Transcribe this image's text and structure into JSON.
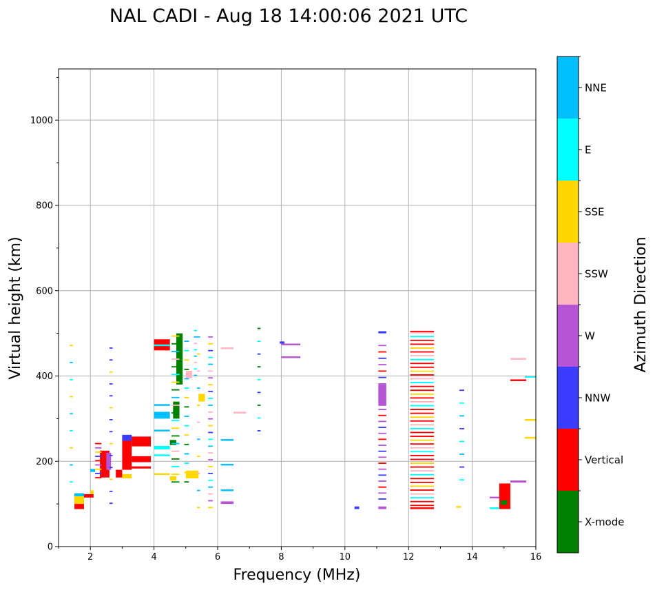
{
  "chart_data": {
    "type": "scatter",
    "title": "NAL CADI - Aug 18 14:00:06 2021 UTC",
    "xlabel": "Frequency (MHz)",
    "ylabel": "Virtual height (km)",
    "xlim": [
      1,
      16
    ],
    "ylim": [
      0,
      1120
    ],
    "xticks": [
      "2",
      "4",
      "6",
      "8",
      "10",
      "12",
      "14",
      "16"
    ],
    "yticks": [
      "0",
      "200",
      "400",
      "600",
      "800",
      "1000"
    ],
    "grid": true,
    "colorbar": {
      "label": "Azimuth Direction",
      "categories": [
        {
          "name": "X-mode",
          "color": "#008000"
        },
        {
          "name": "Vertical",
          "color": "#ff0000"
        },
        {
          "name": "NNW",
          "color": "#3c3cff"
        },
        {
          "name": "W",
          "color": "#b555d5"
        },
        {
          "name": "SSW",
          "color": "#ffb6c1"
        },
        {
          "name": "SSE",
          "color": "#ffd700"
        },
        {
          "name": "E",
          "color": "#00ffff"
        },
        {
          "name": "NNE",
          "color": "#00bfff"
        }
      ]
    },
    "segments": [
      {
        "f0": 1.5,
        "f1": 1.8,
        "h0": 88,
        "h1": 125,
        "az": "Vertical"
      },
      {
        "f0": 1.5,
        "f1": 1.8,
        "h0": 100,
        "h1": 125,
        "az": "SSE"
      },
      {
        "f0": 1.5,
        "f1": 1.8,
        "h0": 118,
        "h1": 125,
        "az": "NNE"
      },
      {
        "f0": 1.8,
        "f1": 2.1,
        "h0": 115,
        "h1": 123,
        "az": "Vertical"
      },
      {
        "f0": 2.0,
        "f1": 2.1,
        "h0": 123,
        "h1": 132,
        "az": "SSE"
      },
      {
        "f0": 2.0,
        "f1": 2.15,
        "h0": 175,
        "h1": 182,
        "az": "NNE"
      },
      {
        "f0": 2.3,
        "f1": 2.6,
        "h0": 162,
        "h1": 225,
        "az": "Vertical"
      },
      {
        "f0": 2.5,
        "f1": 2.65,
        "h0": 180,
        "h1": 220,
        "az": "W"
      },
      {
        "f0": 2.8,
        "f1": 3.0,
        "h0": 162,
        "h1": 180,
        "az": "Vertical"
      },
      {
        "f0": 3.0,
        "f1": 3.3,
        "h0": 160,
        "h1": 170,
        "az": "SSE"
      },
      {
        "f0": 3.0,
        "f1": 3.3,
        "h0": 180,
        "h1": 260,
        "az": "Vertical"
      },
      {
        "f0": 3.0,
        "f1": 3.3,
        "h0": 248,
        "h1": 262,
        "az": "NNW"
      },
      {
        "f0": 3.3,
        "f1": 3.9,
        "h0": 198,
        "h1": 212,
        "az": "Vertical"
      },
      {
        "f0": 3.3,
        "f1": 3.9,
        "h0": 235,
        "h1": 258,
        "az": "Vertical"
      },
      {
        "f0": 3.3,
        "f1": 3.9,
        "h0": 183,
        "h1": 188,
        "az": "Vertical"
      },
      {
        "f0": 4.0,
        "f1": 4.5,
        "h0": 228,
        "h1": 236,
        "az": "E"
      },
      {
        "f0": 4.0,
        "f1": 4.5,
        "h0": 212,
        "h1": 216,
        "az": "E"
      },
      {
        "f0": 4.0,
        "f1": 4.5,
        "h0": 168,
        "h1": 172,
        "az": "SSE"
      },
      {
        "f0": 4.0,
        "f1": 4.5,
        "h0": 300,
        "h1": 316,
        "az": "NNE"
      },
      {
        "f0": 4.0,
        "f1": 4.5,
        "h0": 270,
        "h1": 274,
        "az": "NNE"
      },
      {
        "f0": 4.0,
        "f1": 4.5,
        "h0": 330,
        "h1": 334,
        "az": "NNE"
      },
      {
        "f0": 4.0,
        "f1": 4.5,
        "h0": 460,
        "h1": 486,
        "az": "Vertical"
      },
      {
        "f0": 4.0,
        "f1": 4.5,
        "h0": 470,
        "h1": 474,
        "az": "E"
      },
      {
        "f0": 4.5,
        "f1": 4.7,
        "h0": 238,
        "h1": 250,
        "az": "X-mode"
      },
      {
        "f0": 4.6,
        "f1": 4.8,
        "h0": 300,
        "h1": 340,
        "az": "X-mode"
      },
      {
        "f0": 4.7,
        "f1": 4.9,
        "h0": 380,
        "h1": 500,
        "az": "X-mode"
      },
      {
        "f0": 4.5,
        "f1": 4.7,
        "h0": 155,
        "h1": 165,
        "az": "SSE"
      },
      {
        "f0": 5.0,
        "f1": 5.4,
        "h0": 160,
        "h1": 178,
        "az": "SSE"
      },
      {
        "f0": 5.4,
        "f1": 5.6,
        "h0": 340,
        "h1": 358,
        "az": "SSE"
      },
      {
        "f0": 5.0,
        "f1": 5.2,
        "h0": 395,
        "h1": 412,
        "az": "SSW"
      },
      {
        "f0": 6.1,
        "f1": 6.5,
        "h0": 100,
        "h1": 106,
        "az": "W"
      },
      {
        "f0": 6.1,
        "f1": 6.5,
        "h0": 130,
        "h1": 134,
        "az": "NNE"
      },
      {
        "f0": 6.1,
        "f1": 6.5,
        "h0": 190,
        "h1": 194,
        "az": "NNE"
      },
      {
        "f0": 6.1,
        "f1": 6.5,
        "h0": 248,
        "h1": 252,
        "az": "NNE"
      },
      {
        "f0": 6.1,
        "f1": 6.5,
        "h0": 463,
        "h1": 467,
        "az": "SSW"
      },
      {
        "f0": 6.5,
        "f1": 6.9,
        "h0": 312,
        "h1": 316,
        "az": "SSW"
      },
      {
        "f0": 8.0,
        "f1": 8.6,
        "h0": 442,
        "h1": 446,
        "az": "W"
      },
      {
        "f0": 8.0,
        "f1": 8.6,
        "h0": 472,
        "h1": 476,
        "az": "W"
      },
      {
        "f0": 7.95,
        "f1": 8.1,
        "h0": 476,
        "h1": 481,
        "az": "NNW"
      },
      {
        "f0": 10.3,
        "f1": 10.45,
        "h0": 88,
        "h1": 94,
        "az": "NNW"
      },
      {
        "f0": 11.05,
        "f1": 11.3,
        "h0": 88,
        "h1": 94,
        "az": "W"
      },
      {
        "f0": 11.05,
        "f1": 11.3,
        "h0": 330,
        "h1": 380,
        "az": "W"
      },
      {
        "f0": 11.05,
        "f1": 11.3,
        "h0": 500,
        "h1": 505,
        "az": "NNW"
      },
      {
        "f0": 12.05,
        "f1": 12.8,
        "h0": 88,
        "h1": 92,
        "az": "Vertical"
      },
      {
        "f0": 12.05,
        "f1": 12.8,
        "h0": 502,
        "h1": 506,
        "az": "Vertical"
      },
      {
        "f0": 13.5,
        "f1": 13.65,
        "h0": 91,
        "h1": 95,
        "az": "SSE"
      },
      {
        "f0": 14.55,
        "f1": 14.85,
        "h0": 113,
        "h1": 117,
        "az": "W"
      },
      {
        "f0": 14.55,
        "f1": 14.85,
        "h0": 88,
        "h1": 92,
        "az": "E"
      },
      {
        "f0": 14.85,
        "f1": 15.2,
        "h0": 88,
        "h1": 148,
        "az": "Vertical"
      },
      {
        "f0": 14.9,
        "f1": 15.1,
        "h0": 98,
        "h1": 108,
        "az": "X-mode"
      },
      {
        "f0": 15.2,
        "f1": 15.7,
        "h0": 150,
        "h1": 155,
        "az": "W"
      },
      {
        "f0": 15.2,
        "f1": 15.7,
        "h0": 388,
        "h1": 392,
        "az": "Vertical"
      },
      {
        "f0": 15.2,
        "f1": 15.7,
        "h0": 438,
        "h1": 442,
        "az": "SSW"
      },
      {
        "f0": 15.65,
        "f1": 16.0,
        "h0": 253,
        "h1": 257,
        "az": "SSE"
      },
      {
        "f0": 15.65,
        "f1": 16.0,
        "h0": 295,
        "h1": 299,
        "az": "SSE"
      },
      {
        "f0": 15.65,
        "f1": 16.0,
        "h0": 396,
        "h1": 399,
        "az": "E"
      }
    ],
    "ladders": [
      {
        "f0": 12.05,
        "f1": 12.8,
        "h0": 95,
        "h1": 500,
        "step": 9,
        "cycle": [
          "Vertical",
          "Vertical",
          "E",
          "SSW",
          "Vertical",
          "SSE"
        ]
      },
      {
        "f0": 11.05,
        "f1": 11.3,
        "h0": 110,
        "h1": 330,
        "step": 14,
        "cycle": [
          "NNW",
          "W",
          "Vertical",
          "W"
        ]
      },
      {
        "f0": 11.05,
        "f1": 11.3,
        "h0": 380,
        "h1": 470,
        "step": 15,
        "cycle": [
          "W",
          "NNW",
          "Vertical"
        ]
      },
      {
        "f0": 13.6,
        "f1": 13.75,
        "h0": 155,
        "h1": 380,
        "step": 30,
        "cycle": [
          "E",
          "NNW",
          "NNE"
        ]
      },
      {
        "f0": 4.55,
        "f1": 4.8,
        "h0": 150,
        "h1": 500,
        "step": 18,
        "cycle": [
          "X-mode",
          "SSE",
          "E",
          "X-mode",
          "SSW",
          "NNE"
        ]
      },
      {
        "f0": 5.7,
        "f1": 5.85,
        "h0": 90,
        "h1": 500,
        "step": 16,
        "cycle": [
          "SSE",
          "W",
          "SSW",
          "NNE",
          "E",
          "NNW"
        ]
      },
      {
        "f0": 4.95,
        "f1": 5.1,
        "h0": 150,
        "h1": 500,
        "step": 22,
        "cycle": [
          "X-mode",
          "SSE",
          "E",
          "NNE"
        ]
      },
      {
        "f0": 2.6,
        "f1": 2.7,
        "h0": 100,
        "h1": 490,
        "step": 28,
        "cycle": [
          "NNW",
          "NNW",
          "SSE"
        ]
      },
      {
        "f0": 1.35,
        "f1": 1.45,
        "h0": 150,
        "h1": 500,
        "step": 40,
        "cycle": [
          "E",
          "NNE",
          "SSE"
        ]
      },
      {
        "f0": 2.15,
        "f1": 2.35,
        "h0": 160,
        "h1": 240,
        "step": 10,
        "cycle": [
          "Vertical",
          "NNW",
          "SSE",
          "W"
        ]
      },
      {
        "f0": 7.25,
        "f1": 7.35,
        "h0": 270,
        "h1": 510,
        "step": 30,
        "cycle": [
          "NNW",
          "E",
          "X-mode"
        ]
      },
      {
        "f0": 5.35,
        "f1": 5.45,
        "h0": 90,
        "h1": 510,
        "step": 40,
        "cycle": [
          "SSE",
          "NNE",
          "SSW"
        ]
      },
      {
        "f0": 5.25,
        "f1": 5.35,
        "h0": 400,
        "h1": 505,
        "step": 15,
        "cycle": [
          "NNE",
          "E",
          "SSW"
        ]
      }
    ]
  }
}
